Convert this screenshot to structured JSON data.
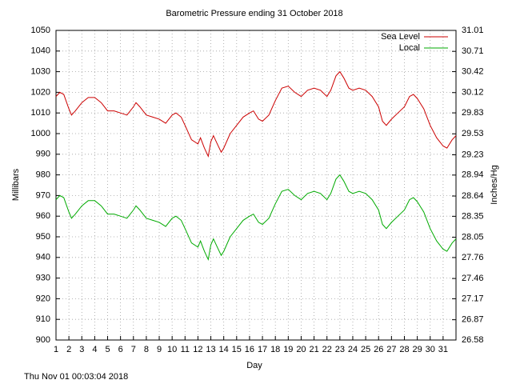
{
  "chart_data": {
    "type": "line",
    "title": "Barometric Pressure ending 31 October 2018",
    "x_label": "Day",
    "y_label": "Millibars",
    "y2_label": "Inches/Hg",
    "footer": "Thu Nov 01 00:03:04 2018",
    "legend": "top-right",
    "grid": true,
    "xlim": [
      1,
      32
    ],
    "xticks": [
      1,
      2,
      3,
      4,
      5,
      6,
      7,
      8,
      9,
      10,
      11,
      12,
      13,
      14,
      15,
      16,
      17,
      18,
      19,
      20,
      21,
      22,
      23,
      24,
      25,
      26,
      27,
      28,
      29,
      30,
      31
    ],
    "ylim": [
      900,
      1050
    ],
    "yticks": [
      900,
      910,
      920,
      930,
      940,
      950,
      960,
      970,
      980,
      990,
      1000,
      1010,
      1020,
      1030,
      1040,
      1050
    ],
    "y2lim": [
      26.58,
      31.01
    ],
    "y2ticks": [
      26.58,
      26.87,
      27.17,
      27.46,
      27.76,
      28.05,
      28.35,
      28.64,
      28.94,
      29.23,
      29.53,
      29.83,
      30.12,
      30.42,
      30.71,
      31.01
    ],
    "x": [
      1,
      1.3,
      1.6,
      2,
      2.2,
      2.5,
      3,
      3.5,
      4,
      4.5,
      5,
      5.5,
      6,
      6.5,
      7,
      7.2,
      7.5,
      8,
      8.5,
      9,
      9.5,
      10,
      10.3,
      10.7,
      11,
      11.5,
      12,
      12.2,
      12.5,
      12.8,
      13,
      13.2,
      13.5,
      13.8,
      14,
      14.5,
      15,
      15.5,
      16,
      16.3,
      16.7,
      17,
      17.5,
      18,
      18.5,
      19,
      19.5,
      20,
      20.5,
      21,
      21.5,
      22,
      22.3,
      22.7,
      23,
      23.3,
      23.7,
      24,
      24.5,
      25,
      25.5,
      26,
      26.3,
      26.6,
      27,
      27.5,
      28,
      28.4,
      28.7,
      29,
      29.5,
      30,
      30.5,
      31,
      31.3,
      31.7,
      32
    ],
    "series": [
      {
        "name": "Sea Level",
        "color": "#cc0000",
        "values": [
          1018,
          1020,
          1019,
          1012,
          1009,
          1011,
          1015,
          1017.5,
          1017.5,
          1015,
          1011,
          1011,
          1010,
          1009,
          1013,
          1015,
          1013,
          1009,
          1008,
          1007,
          1005,
          1009,
          1010,
          1008,
          1004,
          997,
          995,
          998,
          993,
          989,
          996,
          999,
          995,
          991,
          993,
          1000,
          1004,
          1008,
          1010,
          1011,
          1007,
          1006,
          1009,
          1016,
          1022,
          1023,
          1020,
          1018,
          1021,
          1022,
          1021,
          1018,
          1021,
          1028,
          1030,
          1027,
          1022,
          1021,
          1022,
          1021,
          1018,
          1013,
          1006,
          1004,
          1007,
          1010,
          1013,
          1018,
          1019,
          1017,
          1012,
          1004,
          998,
          994,
          993,
          997,
          999
        ]
      },
      {
        "name": "Local",
        "color": "#00aa00",
        "values": [
          968,
          970,
          969,
          962,
          959,
          961,
          965,
          967.5,
          967.5,
          965,
          961,
          961,
          960,
          959,
          963,
          965,
          963,
          959,
          958,
          957,
          955,
          959,
          960,
          958,
          954,
          947,
          945,
          948,
          943,
          939,
          946,
          949,
          945,
          941,
          943,
          950,
          954,
          958,
          960,
          961,
          957,
          956,
          959,
          966,
          972,
          973,
          970,
          968,
          971,
          972,
          971,
          968,
          971,
          978,
          980,
          977,
          972,
          971,
          972,
          971,
          968,
          963,
          956,
          954,
          957,
          960,
          963,
          968,
          969,
          967,
          962,
          954,
          948,
          944,
          943,
          947,
          949
        ]
      }
    ]
  }
}
